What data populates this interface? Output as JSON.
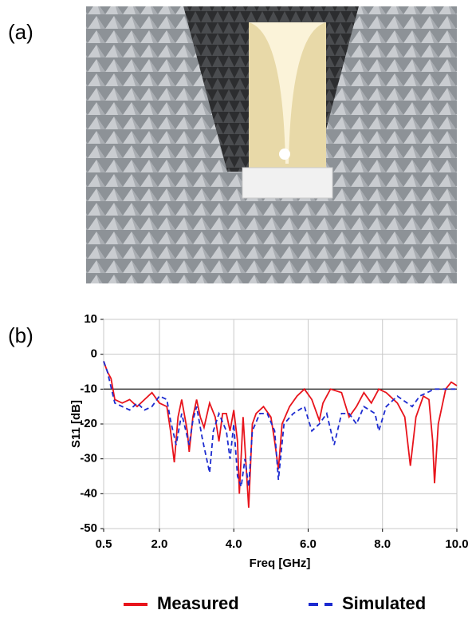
{
  "panel_labels": [
    "(a)",
    "(b)"
  ],
  "chart_data": {
    "type": "line",
    "xlabel": "Freq [GHz]",
    "ylabel": "S11 [dB]",
    "xlim": [
      0.5,
      10.0
    ],
    "ylim": [
      -50,
      10
    ],
    "xticks": [
      0.5,
      {
        "value": 2,
        "label": "2.0"
      },
      {
        "value": 4,
        "label": "4.0"
      },
      {
        "value": 6,
        "label": "6.0"
      },
      {
        "value": 8,
        "label": "8.0"
      },
      {
        "value": 10,
        "label": "10.0"
      }
    ],
    "yticks": [
      10,
      0,
      -10,
      -20,
      -30,
      -40,
      -50
    ],
    "grid": true,
    "hline": -10,
    "series": [
      {
        "name": "Measured",
        "color": "#e8141c",
        "dash": false,
        "x": [
          0.5,
          0.6,
          0.7,
          0.8,
          1.0,
          1.2,
          1.4,
          1.6,
          1.8,
          2.0,
          2.2,
          2.3,
          2.4,
          2.5,
          2.6,
          2.75,
          2.8,
          2.9,
          3.0,
          3.1,
          3.2,
          3.35,
          3.5,
          3.6,
          3.7,
          3.8,
          3.9,
          4.0,
          4.1,
          4.15,
          4.25,
          4.35,
          4.4,
          4.5,
          4.6,
          4.8,
          5.0,
          5.1,
          5.2,
          5.3,
          5.5,
          5.7,
          5.9,
          6.1,
          6.3,
          6.4,
          6.6,
          6.9,
          7.1,
          7.3,
          7.5,
          7.7,
          7.9,
          8.1,
          8.4,
          8.6,
          8.75,
          8.9,
          9.1,
          9.25,
          9.35,
          9.4,
          9.5,
          9.7,
          9.85,
          10.0
        ],
        "values": [
          -2,
          -5,
          -7,
          -13,
          -14,
          -13,
          -15,
          -13,
          -11,
          -14,
          -15,
          -22,
          -31,
          -18,
          -13,
          -22,
          -28,
          -18,
          -13,
          -18,
          -21,
          -14,
          -18,
          -25,
          -17,
          -17,
          -22,
          -16,
          -25,
          -40,
          -18,
          -35,
          -44,
          -20,
          -17,
          -15,
          -18,
          -25,
          -33,
          -20,
          -15,
          -12,
          -10,
          -13,
          -19,
          -14,
          -10,
          -11,
          -18,
          -15,
          -11,
          -14,
          -10,
          -11,
          -14,
          -18,
          -32,
          -18,
          -12,
          -13,
          -25,
          -37,
          -20,
          -10,
          -8,
          -9
        ]
      },
      {
        "name": "Simulated",
        "color": "#1c2bd0",
        "dash": true,
        "x": [
          0.5,
          0.6,
          0.8,
          1.0,
          1.2,
          1.4,
          1.6,
          1.8,
          2.0,
          2.2,
          2.3,
          2.45,
          2.6,
          2.8,
          2.9,
          3.0,
          3.15,
          3.35,
          3.45,
          3.6,
          3.8,
          3.9,
          4.0,
          4.1,
          4.2,
          4.3,
          4.4,
          4.5,
          4.7,
          4.9,
          5.1,
          5.2,
          5.35,
          5.6,
          5.9,
          6.1,
          6.3,
          6.5,
          6.7,
          6.9,
          7.1,
          7.3,
          7.5,
          7.8,
          7.9,
          8.1,
          8.4,
          8.8,
          9.0,
          9.4,
          10.0
        ],
        "values": [
          -2,
          -5,
          -14,
          -15,
          -16,
          -14,
          -16,
          -15,
          -12,
          -13,
          -19,
          -26,
          -17,
          -26,
          -19,
          -15,
          -24,
          -34,
          -22,
          -17,
          -22,
          -30,
          -20,
          -35,
          -38,
          -30,
          -38,
          -22,
          -17,
          -17,
          -22,
          -36,
          -20,
          -17,
          -15,
          -22,
          -20,
          -17,
          -26,
          -17,
          -17,
          -20,
          -15,
          -17,
          -22,
          -15,
          -12,
          -15,
          -12,
          -10,
          -10
        ]
      }
    ]
  }
}
